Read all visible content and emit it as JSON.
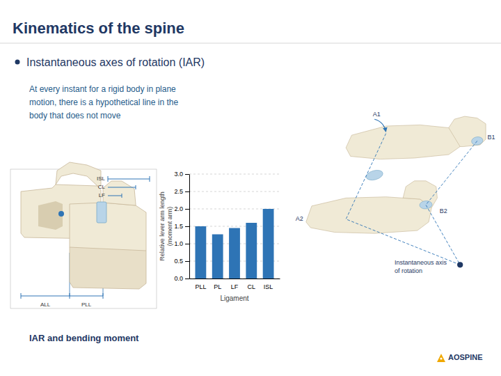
{
  "chart_data": {
    "type": "bar",
    "title": "Kinematics of the spine",
    "subtitle": "Instantaneous axes of rotation (IAR)",
    "annotations": [
      "At every instant for a rigid body in plane\nmotion, there is a hypothetical line in the\nbody that does not move",
      "IAR and bending moment",
      "ISL",
      "CL",
      "LF",
      "ALL",
      "PLL",
      "A1",
      "B1",
      "A2",
      "B2",
      "Instantaneous axis\nof rotation",
      "AOSPINE"
    ],
    "categories": [
      "PLL",
      "PL",
      "LF",
      "CL",
      "ISL"
    ],
    "values": [
      1.5,
      1.27,
      1.45,
      1.6,
      2.0
    ],
    "color": "#2e74b5",
    "xlabel": "Ligament",
    "ylabel": "Relative lever arm length\n(moment arm)",
    "ylim": [
      0,
      3.0
    ],
    "yticks": [
      {
        "value": 0,
        "label": "0.0"
      },
      0.5,
      {
        "value": 1.0,
        "label": "1.0"
      },
      1.5,
      {
        "value": 2.0,
        "label": "2.0"
      },
      2.5,
      {
        "value": 3.0,
        "label": "3.0"
      }
    ],
    "grid": true
  }
}
